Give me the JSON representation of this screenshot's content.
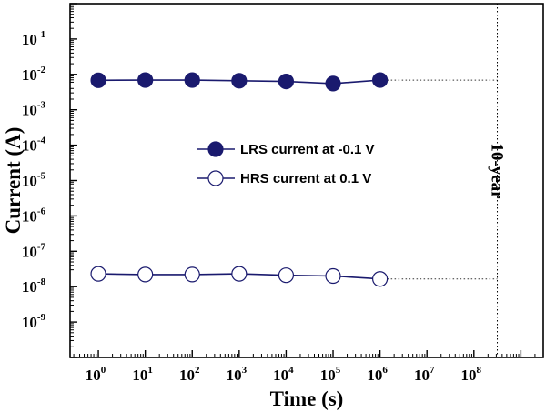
{
  "chart_data": {
    "type": "line",
    "xlabel": "Time (s)",
    "ylabel": "Current (A)",
    "x_scale": "log",
    "y_scale": "log",
    "xlim": [
      0.25,
      3000000000
    ],
    "ylim": [
      1e-10,
      1
    ],
    "x_ticks": [
      {
        "value": 1,
        "base": "10",
        "exp": "0"
      },
      {
        "value": 10,
        "base": "10",
        "exp": "1"
      },
      {
        "value": 100,
        "base": "10",
        "exp": "2"
      },
      {
        "value": 1000,
        "base": "10",
        "exp": "3"
      },
      {
        "value": 10000,
        "base": "10",
        "exp": "4"
      },
      {
        "value": 100000,
        "base": "10",
        "exp": "5"
      },
      {
        "value": 1000000,
        "base": "10",
        "exp": "6"
      },
      {
        "value": 10000000,
        "base": "10",
        "exp": "7"
      },
      {
        "value": 100000000,
        "base": "10",
        "exp": "8"
      }
    ],
    "y_ticks": [
      {
        "value": 1e-09,
        "base": "10",
        "exp": "-9"
      },
      {
        "value": 1e-08,
        "base": "10",
        "exp": "-8"
      },
      {
        "value": 1e-07,
        "base": "10",
        "exp": "-7"
      },
      {
        "value": 1e-06,
        "base": "10",
        "exp": "-6"
      },
      {
        "value": 1e-05,
        "base": "10",
        "exp": "-5"
      },
      {
        "value": 0.0001,
        "base": "10",
        "exp": "-4"
      },
      {
        "value": 0.001,
        "base": "10",
        "exp": "-3"
      },
      {
        "value": 0.01,
        "base": "10",
        "exp": "-2"
      },
      {
        "value": 0.1,
        "base": "10",
        "exp": "-1"
      }
    ],
    "series": [
      {
        "name": "LRS current at -0.1 V",
        "marker": "filled-circle",
        "color": "#1a1a6e",
        "x": [
          1,
          10,
          100,
          1000,
          10000,
          100000,
          1000000
        ],
        "y": [
          0.0068,
          0.0069,
          0.0069,
          0.0066,
          0.0063,
          0.0055,
          0.0069
        ]
      },
      {
        "name": "HRS current at 0.1 V",
        "marker": "open-circle",
        "color": "#1a1a6e",
        "x": [
          1,
          10,
          100,
          1000,
          10000,
          100000,
          1000000
        ],
        "y": [
          2.3e-08,
          2.2e-08,
          2.2e-08,
          2.3e-08,
          2.1e-08,
          2e-08,
          1.65e-08
        ]
      }
    ],
    "extrapolations": [
      {
        "from_x": 1000000,
        "to_x": 315360000,
        "y": 0.0069
      },
      {
        "from_x": 1000000,
        "to_x": 315360000,
        "y": 1.65e-08
      }
    ],
    "vertical_marker": {
      "x": 315360000,
      "label": "10-year"
    },
    "legend_position": "center-left",
    "grid": false
  }
}
